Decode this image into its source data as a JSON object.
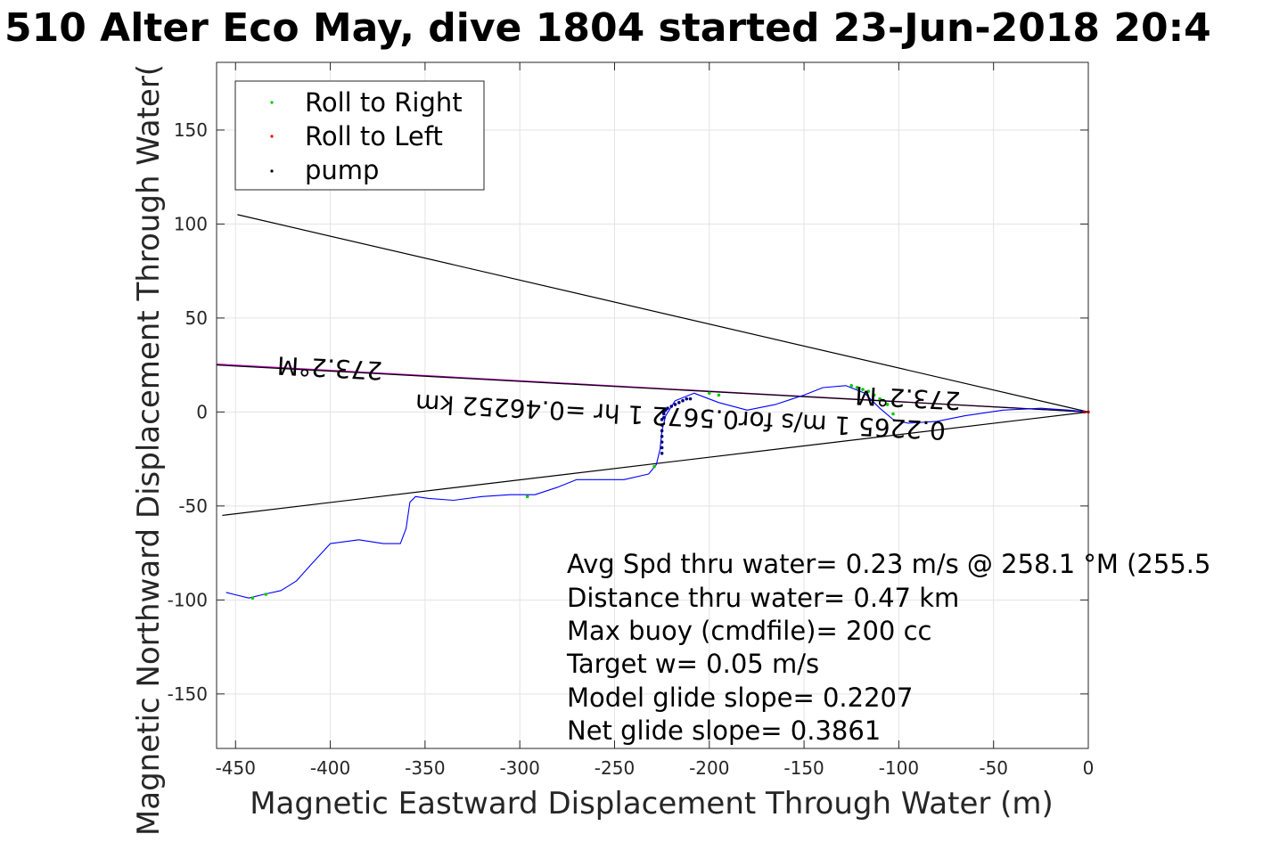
{
  "chart_data": {
    "type": "scatter",
    "title": "510 Alter Eco May, dive 1804 started 23-Jun-2018 20:4",
    "xlabel": "Magnetic Eastward Displacement Through Water (m)",
    "ylabel": "Magnetic Northward Displacement Through Water(",
    "xlim": [
      -460,
      0
    ],
    "ylim": [
      -179,
      186
    ],
    "xticks": [
      -450,
      -400,
      -350,
      -300,
      -250,
      -200,
      -150,
      -100,
      -50,
      0
    ],
    "yticks": [
      -150,
      -100,
      -50,
      0,
      50,
      100,
      150
    ],
    "xtick_labels": [
      "-450",
      "-400",
      "-350",
      "-300",
      "-250",
      "-200",
      "-150",
      "-100",
      "-50",
      "0"
    ],
    "ytick_labels": [
      "-150",
      "-100",
      "-50",
      "0",
      "50",
      "100",
      "150"
    ],
    "grid": true,
    "legend_position": "top-left",
    "legend": [
      {
        "label": "Roll to Right",
        "color": "#00cc00"
      },
      {
        "label": "Roll to Left",
        "color": "#ff0000"
      },
      {
        "label": "pump",
        "color": "#000000"
      }
    ],
    "series": [
      {
        "name": "track",
        "kind": "line",
        "color": "#0000ff",
        "x": [
          0,
          -10,
          -25,
          -45,
          -65,
          -80,
          -95,
          -103,
          -110,
          -118,
          -128,
          -140,
          -150,
          -165,
          -180,
          -195,
          -208,
          -218,
          -223,
          -225,
          -226,
          -228,
          -232,
          -245,
          -258,
          -270,
          -280,
          -292,
          -305,
          -320,
          -335,
          -348,
          -355,
          -358,
          -360,
          -363,
          -372,
          -385,
          -400,
          -410,
          -418,
          -426,
          -435,
          -443,
          -451,
          -455
        ],
        "y": [
          0,
          1,
          2,
          1,
          -2,
          -5,
          -6,
          -4,
          2,
          10,
          14,
          13,
          9,
          4,
          1,
          5,
          10,
          6,
          -2,
          -10,
          -20,
          -28,
          -33,
          -36,
          -36,
          -36,
          -40,
          -44,
          -44,
          -45,
          -47,
          -46,
          -45,
          -48,
          -62,
          -70,
          -70,
          -68,
          -70,
          -81,
          -90,
          -95,
          -97,
          -99,
          -97,
          -96
        ]
      },
      {
        "name": "Roll to Right",
        "kind": "points",
        "color": "#00cc00",
        "x": [
          -103,
          -106,
          -110,
          -113,
          -116,
          -119,
          -122,
          -125,
          -195,
          -200,
          -229,
          -296,
          -434,
          -441
        ],
        "y": [
          -1,
          4,
          7,
          9,
          11,
          12,
          13,
          14,
          9,
          10,
          -29,
          -45,
          -97,
          -99
        ]
      },
      {
        "name": "Roll to Left",
        "kind": "points",
        "color": "#ff0000",
        "x": [
          0,
          -2
        ],
        "y": [
          0,
          0
        ]
      },
      {
        "name": "pump",
        "kind": "points",
        "color": "#000080",
        "x": [
          -225,
          -225,
          -225,
          -225,
          -225,
          -225,
          -225,
          -224,
          -224,
          -224,
          -223,
          -222,
          -220,
          -218,
          -216,
          -214,
          -212,
          -210
        ],
        "y": [
          -4,
          -7,
          -10,
          -13,
          -16,
          -19,
          -22,
          -3,
          0,
          -1,
          1,
          2,
          3,
          4,
          5,
          6,
          7,
          7
        ]
      }
    ],
    "lines": [
      {
        "name": "bound-upper",
        "color": "#000000",
        "x": [
          -449,
          0
        ],
        "y": [
          105,
          0
        ]
      },
      {
        "name": "bound-lower",
        "color": "#000000",
        "x": [
          -457,
          0
        ],
        "y": [
          -55,
          0
        ]
      },
      {
        "name": "heading",
        "color": "#cc00cc",
        "x": [
          -460,
          0
        ],
        "y": [
          25.5,
          0
        ]
      },
      {
        "name": "heading-black",
        "color": "#000000",
        "x": [
          -460,
          0
        ],
        "y": [
          25,
          0
        ]
      }
    ],
    "annotations": [
      {
        "text": "273.2°M",
        "x": -400,
        "y": 28,
        "rotate": 183
      },
      {
        "text": "273.2°M",
        "x": -95,
        "y": 12,
        "rotate": 183
      },
      {
        "text": "0.2265 1 m/s for0.5672 1 hr =0.46252 km",
        "x": -215,
        "y": 2,
        "rotate": 183
      }
    ],
    "summary": [
      "Avg Spd thru water=  0.23 m/s @ 258.1 °M (255.5",
      "Distance thru water=  0.47 km",
      "Max buoy (cmdfile)= 200 cc",
      "Target w= 0.05 m/s",
      "Model glide slope= 0.2207",
      "Net glide slope= 0.3861"
    ]
  }
}
